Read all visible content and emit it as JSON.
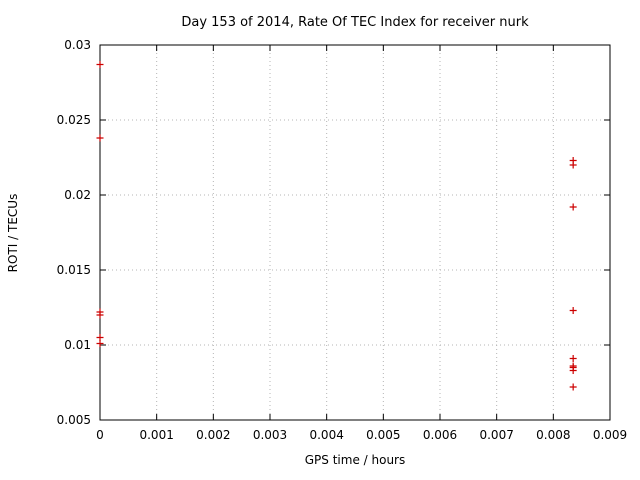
{
  "chart_data": {
    "type": "scatter",
    "title": "Day 153 of 2014, Rate Of TEC Index for receiver nurk",
    "xlabel": "GPS time / hours",
    "ylabel": "ROTI / TECUs",
    "xlim": [
      0,
      0.009
    ],
    "ylim": [
      0.005,
      0.03
    ],
    "xticks": [
      0,
      0.001,
      0.002,
      0.003,
      0.004,
      0.005,
      0.006,
      0.007,
      0.008,
      0.009
    ],
    "xtick_labels": [
      "0",
      "0.001",
      "0.002",
      "0.003",
      "0.004",
      "0.005",
      "0.006",
      "0.007",
      "0.008",
      "0.009"
    ],
    "yticks": [
      0.005,
      0.01,
      0.015,
      0.02,
      0.025,
      0.03
    ],
    "ytick_labels": [
      "0.005",
      "0.01",
      "0.015",
      "0.02",
      "0.025",
      "0.03"
    ],
    "grid": true,
    "legend": "none",
    "marker": "plus",
    "marker_color": "#cc0000",
    "grid_color": "#b5b5b5",
    "border_color": "#000000",
    "series": [
      {
        "name": "ROTI",
        "points": [
          [
            0,
            0.0287
          ],
          [
            0,
            0.0238
          ],
          [
            0,
            0.0122
          ],
          [
            0,
            0.012
          ],
          [
            0,
            0.0105
          ],
          [
            0,
            0.0101
          ],
          [
            0.00835,
            0.0223
          ],
          [
            0.00835,
            0.022
          ],
          [
            0.00835,
            0.0192
          ],
          [
            0.00835,
            0.0123
          ],
          [
            0.00835,
            0.0091
          ],
          [
            0.00835,
            0.0086
          ],
          [
            0.00835,
            0.0085
          ],
          [
            0.00835,
            0.0083
          ],
          [
            0.00835,
            0.0072
          ]
        ]
      }
    ]
  }
}
